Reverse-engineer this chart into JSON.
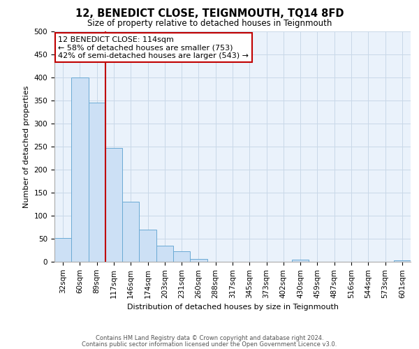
{
  "title": "12, BENEDICT CLOSE, TEIGNMOUTH, TQ14 8FD",
  "subtitle": "Size of property relative to detached houses in Teignmouth",
  "xlabel": "Distribution of detached houses by size in Teignmouth",
  "ylabel": "Number of detached properties",
  "bar_labels": [
    "32sqm",
    "60sqm",
    "89sqm",
    "117sqm",
    "146sqm",
    "174sqm",
    "203sqm",
    "231sqm",
    "260sqm",
    "288sqm",
    "317sqm",
    "345sqm",
    "373sqm",
    "402sqm",
    "430sqm",
    "459sqm",
    "487sqm",
    "516sqm",
    "544sqm",
    "573sqm",
    "601sqm"
  ],
  "bar_values": [
    52,
    400,
    345,
    247,
    130,
    70,
    35,
    22,
    6,
    0,
    0,
    0,
    0,
    0,
    4,
    0,
    0,
    0,
    0,
    0,
    3
  ],
  "bar_color": "#cce0f5",
  "bar_edge_color": "#6aaad4",
  "vline_x_index": 3,
  "vline_color": "#c00000",
  "annotation_line1": "12 BENEDICT CLOSE: 114sqm",
  "annotation_line2": "← 58% of detached houses are smaller (753)",
  "annotation_line3": "42% of semi-detached houses are larger (543) →",
  "annotation_box_color": "#c00000",
  "ylim": [
    0,
    500
  ],
  "yticks": [
    0,
    50,
    100,
    150,
    200,
    250,
    300,
    350,
    400,
    450,
    500
  ],
  "footer_line1": "Contains HM Land Registry data © Crown copyright and database right 2024.",
  "footer_line2": "Contains public sector information licensed under the Open Government Licence v3.0.",
  "bg_color": "#ffffff",
  "ax_bg_color": "#eaf2fb",
  "grid_color": "#c8d8e8",
  "title_fontsize": 10.5,
  "subtitle_fontsize": 8.5,
  "xlabel_fontsize": 8,
  "ylabel_fontsize": 8,
  "tick_fontsize": 7.5,
  "annotation_fontsize": 8,
  "footer_fontsize": 6
}
